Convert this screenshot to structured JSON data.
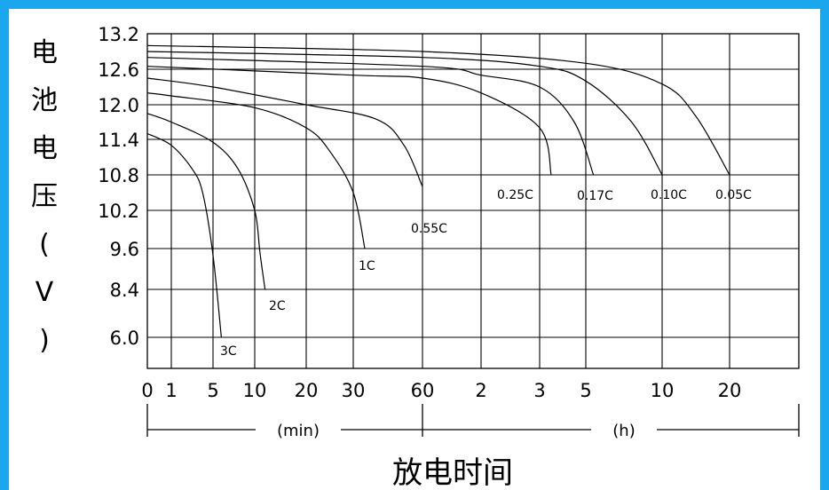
{
  "chart_data": {
    "type": "line",
    "title": "",
    "ylabel": "电池电压(V)",
    "xlabel": "放电时间",
    "y_ticks": [
      "13.2",
      "12.6",
      "12.0",
      "11.4",
      "10.8",
      "10.2",
      "9.6",
      "8.4",
      "6.0"
    ],
    "x_ticks": [
      "0",
      "1",
      "5",
      "10",
      "20",
      "30",
      "60",
      "2",
      "3",
      "5",
      "10",
      "20"
    ],
    "x_units": [
      "(min)",
      "(h)"
    ],
    "grid": true,
    "series": [
      {
        "name": "3C",
        "points": [
          [
            0,
            11.5
          ],
          [
            1,
            11.3
          ],
          [
            3,
            10.9
          ],
          [
            4,
            10.5
          ],
          [
            5,
            9.4
          ],
          [
            6,
            6.0
          ]
        ]
      },
      {
        "name": "2C",
        "points": [
          [
            0,
            11.85
          ],
          [
            1,
            11.7
          ],
          [
            5,
            11.35
          ],
          [
            8,
            10.9
          ],
          [
            10,
            10.2
          ],
          [
            11,
            9.5
          ],
          [
            12,
            8.4
          ]
        ]
      },
      {
        "name": "1C",
        "points": [
          [
            0,
            12.2
          ],
          [
            1,
            12.15
          ],
          [
            10,
            11.95
          ],
          [
            20,
            11.6
          ],
          [
            25,
            11.2
          ],
          [
            30,
            10.5
          ],
          [
            35,
            9.6
          ]
        ]
      },
      {
        "name": "0.55C",
        "points": [
          [
            0,
            12.45
          ],
          [
            5,
            12.3
          ],
          [
            20,
            12.0
          ],
          [
            40,
            11.75
          ],
          [
            52,
            11.3
          ],
          [
            60,
            10.6
          ]
        ]
      },
      {
        "name": "0.25C",
        "points": [
          [
            0,
            12.65
          ],
          [
            30,
            12.5
          ],
          [
            60,
            12.45
          ],
          [
            120,
            12.2
          ],
          [
            180,
            11.6
          ],
          [
            210,
            10.8
          ]
        ]
      },
      {
        "name": "0.17C",
        "points": [
          [
            0,
            12.8
          ],
          [
            60,
            12.65
          ],
          [
            120,
            12.5
          ],
          [
            180,
            12.3
          ],
          [
            270,
            11.7
          ],
          [
            330,
            10.8
          ]
        ]
      },
      {
        "name": "0.10C",
        "points": [
          [
            0,
            12.9
          ],
          [
            60,
            12.8
          ],
          [
            180,
            12.65
          ],
          [
            300,
            12.4
          ],
          [
            480,
            11.7
          ],
          [
            600,
            10.8
          ]
        ]
      },
      {
        "name": "0.05C",
        "points": [
          [
            0,
            13.0
          ],
          [
            60,
            12.9
          ],
          [
            300,
            12.7
          ],
          [
            600,
            12.35
          ],
          [
            900,
            11.8
          ],
          [
            1200,
            10.8
          ]
        ]
      }
    ]
  }
}
